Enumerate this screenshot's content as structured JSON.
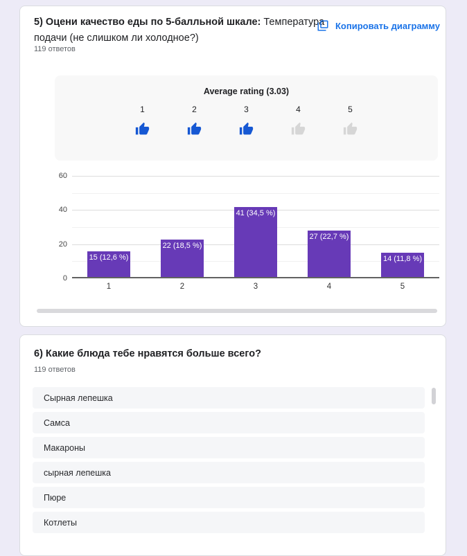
{
  "question5": {
    "title_bold": "5) Оцени качество еды по 5-балльной шкале:",
    "title_regular": " Температура подачи (не слишком ли холодное?)",
    "answers_count": "119 ответов",
    "copy_button_label": "Копировать диаграмму",
    "rating": {
      "title": "Average rating (3.03)",
      "scale": [
        {
          "label": "1",
          "active": true
        },
        {
          "label": "2",
          "active": true
        },
        {
          "label": "3",
          "active": true
        },
        {
          "label": "4",
          "active": false
        },
        {
          "label": "5",
          "active": false
        }
      ],
      "active_color": "#1658d3",
      "inactive_color": "#d6d6d6"
    }
  },
  "chart_data": {
    "type": "bar",
    "title": "",
    "xlabel": "",
    "ylabel": "",
    "categories": [
      "1",
      "2",
      "3",
      "4",
      "5"
    ],
    "values": [
      15,
      22,
      41,
      27,
      14
    ],
    "bar_labels": [
      "15 (12,6 %)",
      "22 (18,5 %)",
      "41 (34,5 %)",
      "27 (22,7 %)",
      "14 (11,8 %)"
    ],
    "ylim": [
      0,
      60
    ],
    "yticks": [
      0,
      20,
      40,
      60
    ],
    "grid_step": 10,
    "grid": true,
    "legend": false,
    "bar_color": "#673ab7"
  },
  "question6": {
    "title": "6) Какие блюда тебе нравятся больше всего?",
    "answers_count": "119 ответов",
    "responses": [
      "Сырная лепешка",
      "Самса",
      "Макароны",
      "сырная лепешка",
      "Пюре",
      "Котлеты"
    ]
  },
  "colors": {
    "accent_blue": "#1a73e8",
    "bar_purple": "#673ab7",
    "page_background": "#edebf7"
  }
}
